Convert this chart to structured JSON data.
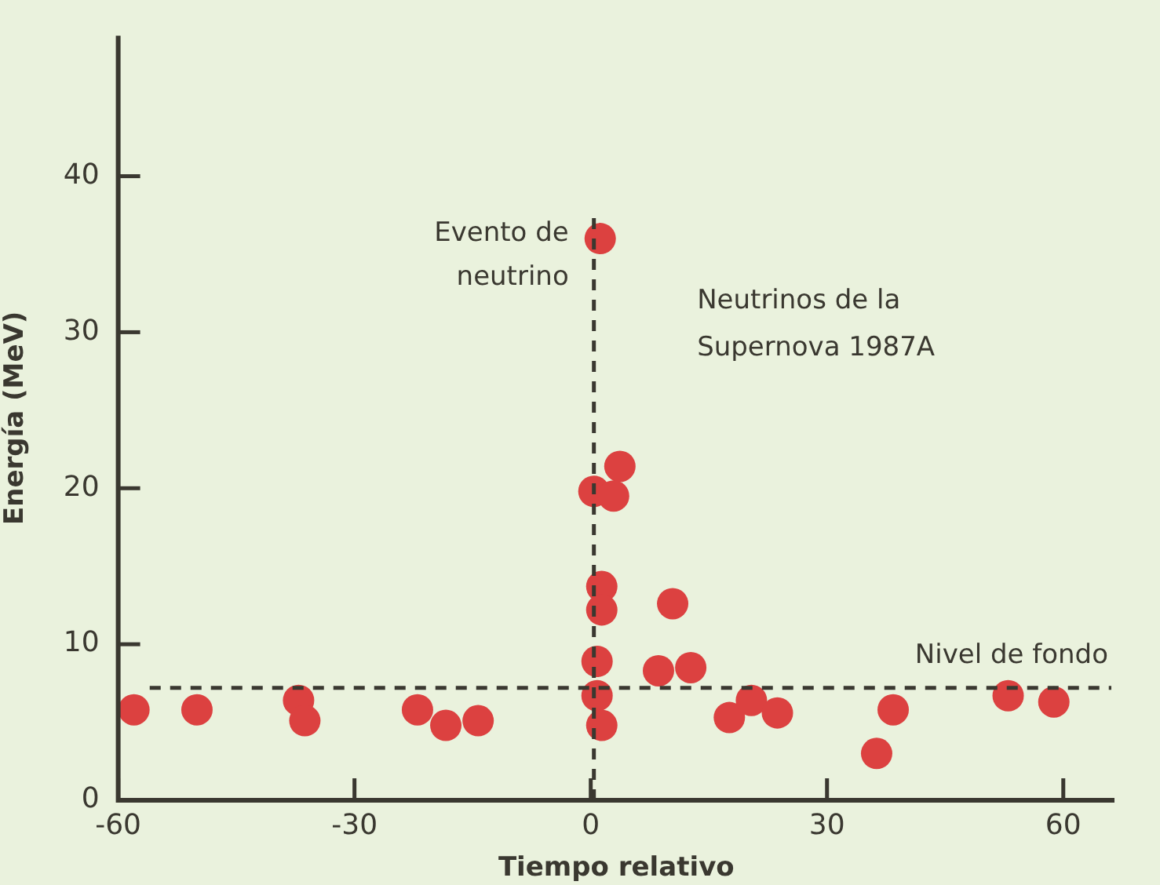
{
  "chart_data": {
    "type": "scatter",
    "xlabel": "Tiempo relativo",
    "ylabel": "Energía (MeV)",
    "x": [
      -58,
      -50,
      -37.1,
      -36.3,
      -22,
      -18.4,
      -14.3,
      1.2,
      3.7,
      0.4,
      2.9,
      1.4,
      1.4,
      0.8,
      0.8,
      1.4,
      10.4,
      8.6,
      12.7,
      17.6,
      20.4,
      23.7,
      36.3,
      38.4,
      53,
      58.8
    ],
    "series": [
      {
        "color": "#dc4140",
        "values": [
          5.8,
          5.8,
          6.4,
          5.1,
          5.8,
          4.8,
          5.1,
          36,
          21.4,
          19.8,
          19.5,
          13.7,
          12.2,
          8.9,
          6.7,
          4.8,
          12.6,
          8.3,
          8.5,
          5.3,
          6.4,
          5.6,
          3,
          5.8,
          6.7,
          6.3
        ]
      }
    ],
    "marker": "circle",
    "xlim": [
      -60,
      66.5
    ],
    "ylim": [
      0,
      49
    ],
    "xticks": [
      -60,
      -30,
      0,
      30,
      60
    ],
    "yticks": [
      0,
      10,
      20,
      30,
      40
    ],
    "grid": false,
    "legend": false,
    "ref_lines": [
      {
        "axis": "x",
        "value": 0.4,
        "label": "Evento de\nneutrino",
        "color": "#3a3830",
        "line_style": "dashed"
      },
      {
        "axis": "y",
        "value": 7.2,
        "label": "Nivel de fondo",
        "color": "#3a3830",
        "line_style": "dashed"
      }
    ],
    "annotations": [
      "Neutrinos de la\nSupernova 1987A"
    ]
  }
}
